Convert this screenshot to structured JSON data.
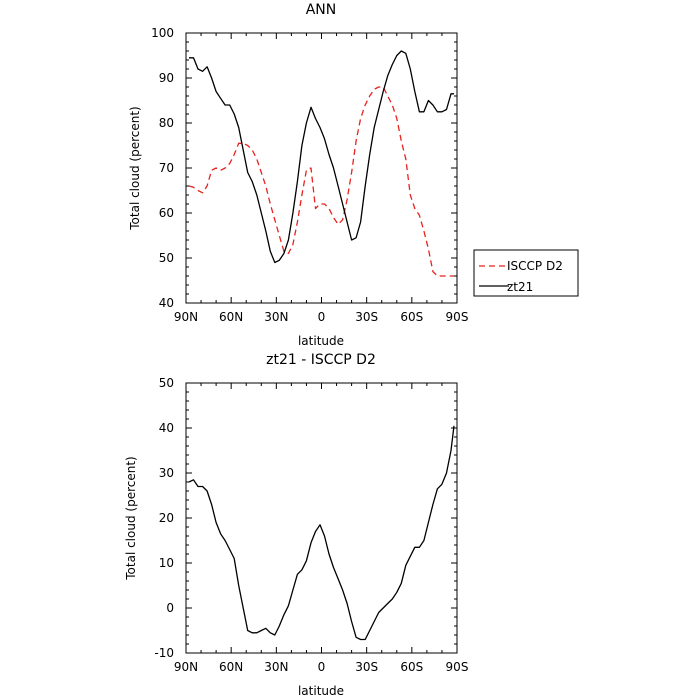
{
  "chart_data": [
    {
      "type": "line",
      "title": "ANN",
      "xlabel": "latitude",
      "ylabel": "Total cloud (percent)",
      "xlim": [
        90,
        -90
      ],
      "ylim": [
        40,
        100
      ],
      "x_ticks": [
        90,
        60,
        30,
        0,
        -30,
        -60,
        -90
      ],
      "x_tick_labels": [
        "90N",
        "60N",
        "30N",
        "0",
        "30S",
        "60S",
        "90S"
      ],
      "y_ticks": [
        40,
        50,
        60,
        70,
        80,
        90,
        100
      ],
      "y_tick_labels": [
        "40",
        "50",
        "60",
        "70",
        "80",
        "90",
        "100"
      ],
      "legend_position": "right",
      "series": [
        {
          "name": "ISCCP D2",
          "color": "#e8221e",
          "dash": "dashed",
          "x": [
            88,
            85,
            82,
            79,
            76,
            73,
            70,
            67,
            64,
            61,
            58,
            55,
            52,
            49,
            46,
            43,
            40,
            37,
            34,
            31,
            28,
            25,
            22,
            19,
            16,
            13,
            10,
            7,
            4,
            1,
            -2,
            -5,
            -8,
            -11,
            -14,
            -17,
            -20,
            -23,
            -26,
            -29,
            -32,
            -35,
            -38,
            -41,
            -44,
            -47,
            -50,
            -53,
            -56,
            -59,
            -62,
            -65,
            -68,
            -71,
            -74,
            -77,
            -80,
            -83,
            -86,
            -88
          ],
          "y": [
            66,
            65.7,
            65,
            64.5,
            66,
            69.5,
            70,
            69.5,
            70,
            71,
            73,
            75.5,
            75.5,
            75,
            74,
            72,
            69,
            66,
            62,
            58.5,
            55,
            51.5,
            51,
            53,
            58,
            64,
            69.5,
            70,
            61,
            62,
            62,
            61,
            59,
            57.5,
            58.5,
            63,
            69,
            76,
            81,
            84,
            86,
            87.5,
            88,
            88,
            86,
            84,
            81,
            76,
            72,
            64,
            61,
            59.5,
            56,
            52,
            47,
            46,
            46,
            46,
            46,
            46
          ]
        },
        {
          "name": "zt21",
          "color": "#000000",
          "dash": "solid",
          "x": [
            88,
            85,
            82,
            79,
            76,
            73,
            70,
            67,
            64,
            61,
            58,
            55,
            52,
            49,
            46,
            43,
            40,
            37,
            34,
            31,
            28,
            25,
            22,
            19,
            16,
            13,
            10,
            7,
            4,
            1,
            -2,
            -5,
            -8,
            -11,
            -14,
            -17,
            -20,
            -23,
            -26,
            -29,
            -32,
            -35,
            -38,
            -41,
            -44,
            -47,
            -50,
            -53,
            -56,
            -59,
            -62,
            -65,
            -68,
            -71,
            -74,
            -77,
            -80,
            -83,
            -86,
            -88
          ],
          "y": [
            94.5,
            94.5,
            92,
            91.5,
            92.5,
            90,
            87,
            85.5,
            84,
            84,
            82,
            79,
            74,
            69,
            67,
            64,
            60,
            56,
            51.5,
            49,
            49.5,
            51,
            54,
            60,
            67,
            75,
            80,
            83.5,
            81,
            79,
            76.5,
            73,
            70,
            66,
            62,
            58,
            54,
            54.5,
            58,
            66,
            73,
            79,
            83,
            87,
            90.5,
            93,
            95,
            96,
            95.5,
            92,
            87,
            82.5,
            82.5,
            85,
            84,
            82.5,
            82.5,
            83,
            86.5,
            86.5
          ]
        }
      ]
    },
    {
      "type": "line",
      "title": "zt21 - ISCCP D2",
      "xlabel": "latitude",
      "ylabel": "Total cloud (percent)",
      "xlim": [
        90,
        -90
      ],
      "ylim": [
        -10,
        50
      ],
      "x_ticks": [
        90,
        60,
        30,
        0,
        -30,
        -60,
        -90
      ],
      "x_tick_labels": [
        "90N",
        "60N",
        "30N",
        "0",
        "30S",
        "60S",
        "90S"
      ],
      "y_ticks": [
        -10,
        0,
        10,
        20,
        30,
        40,
        50
      ],
      "y_tick_labels": [
        "-10",
        "0",
        "10",
        "20",
        "30",
        "40",
        "50"
      ],
      "series": [
        {
          "color": "#000000",
          "dash": "solid",
          "x": [
            88,
            85,
            82,
            79,
            76,
            73,
            70,
            67,
            64,
            61,
            58,
            55,
            52,
            49,
            46,
            43,
            40,
            37,
            34,
            31,
            28,
            25,
            22,
            19,
            16,
            13,
            10,
            7,
            4,
            1,
            -2,
            -5,
            -8,
            -11,
            -14,
            -17,
            -20,
            -23,
            -26,
            -29,
            -32,
            -35,
            -38,
            -41,
            -44,
            -47,
            -50,
            -53,
            -56,
            -59,
            -62,
            -65,
            -68,
            -71,
            -74,
            -77,
            -80,
            -83,
            -86,
            -88
          ],
          "y": [
            28,
            28.5,
            27,
            27,
            26,
            23,
            19,
            16.5,
            15,
            13,
            11,
            5,
            0,
            -5,
            -5.5,
            -5.5,
            -5,
            -4.5,
            -5.5,
            -6,
            -4,
            -1.5,
            0.5,
            4,
            7.5,
            8.5,
            10.5,
            14.5,
            17,
            18.5,
            16,
            12,
            9,
            6.5,
            4,
            1,
            -3,
            -6.5,
            -7,
            -7,
            -5,
            -3,
            -1,
            0,
            1,
            2,
            3.5,
            5.5,
            9.5,
            11.5,
            13.5,
            13.5,
            15,
            19,
            23,
            26.5,
            27.5,
            30,
            35,
            40.5
          ]
        }
      ]
    }
  ]
}
